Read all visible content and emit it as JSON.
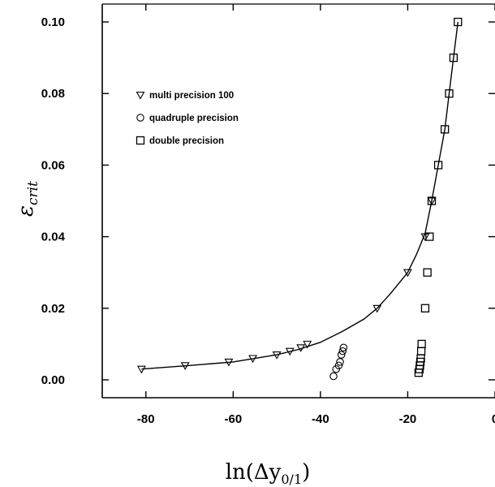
{
  "chart_data": {
    "type": "scatter",
    "xlabel": "ln(Δy",
    "xlabel_sub": "0/1",
    "xlabel_close": ")",
    "ylabel": "ε",
    "ylabel_sub": "crit",
    "xlim": [
      -90,
      0
    ],
    "ylim": [
      -0.005,
      0.105
    ],
    "x_ticks": [
      -80,
      -60,
      -40,
      -20,
      0
    ],
    "x_tick_labels": [
      "-80",
      "-60",
      "-40",
      "-20",
      "0"
    ],
    "y_ticks": [
      0.0,
      0.02,
      0.04,
      0.06,
      0.08,
      0.1
    ],
    "y_tick_labels": [
      "0.00",
      "0.02",
      "0.04",
      "0.06",
      "0.08",
      "0.10"
    ],
    "grid": false,
    "legend_position": "upper-left",
    "series": [
      {
        "name": "multi precision 100",
        "marker": "triangle-down",
        "x": [
          -81,
          -71,
          -61,
          -55.5,
          -50,
          -47,
          -44.5,
          -43,
          -27,
          -20,
          -16,
          -14.5
        ],
        "y": [
          0.003,
          0.004,
          0.005,
          0.006,
          0.007,
          0.008,
          0.009,
          0.01,
          0.02,
          0.03,
          0.04,
          0.05
        ]
      },
      {
        "name": "quadruple precision",
        "marker": "circle",
        "x": [
          -37,
          -36.4,
          -35.8,
          -35.5,
          -35.2,
          -34.9,
          -34.7
        ],
        "y": [
          0.001,
          0.003,
          0.004,
          0.005,
          0.007,
          0.008,
          0.009
        ]
      },
      {
        "name": "double precision",
        "marker": "square",
        "x": [
          -17.5,
          -17.3,
          -17.2,
          -17.1,
          -17.0,
          -16.9,
          -16.8,
          -16.0,
          -15.5,
          -15.0,
          -14.5,
          -13.0,
          -11.5,
          -10.5,
          -9.5,
          -8.5
        ],
        "y": [
          0.002,
          0.003,
          0.004,
          0.005,
          0.006,
          0.008,
          0.01,
          0.02,
          0.03,
          0.04,
          0.05,
          0.06,
          0.07,
          0.08,
          0.09,
          0.1
        ]
      }
    ],
    "fit_curve": {
      "x": [
        -81,
        -70,
        -60,
        -50,
        -45,
        -40,
        -35,
        -30,
        -27,
        -24,
        -20,
        -18,
        -16,
        -14.5,
        -13,
        -11.5,
        -10.5,
        -9.5,
        -8.5
      ],
      "y": [
        0.003,
        0.004,
        0.005,
        0.007,
        0.0085,
        0.0105,
        0.0135,
        0.017,
        0.02,
        0.024,
        0.03,
        0.035,
        0.041,
        0.05,
        0.06,
        0.07,
        0.08,
        0.09,
        0.1
      ]
    }
  }
}
